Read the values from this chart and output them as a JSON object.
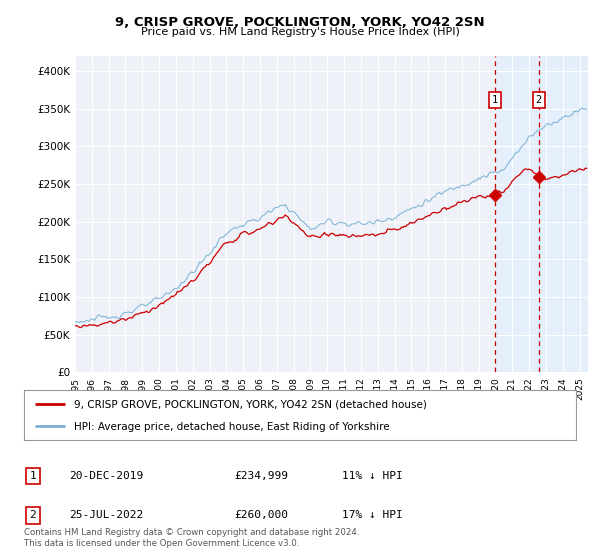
{
  "title": "9, CRISP GROVE, POCKLINGTON, YORK, YO42 2SN",
  "subtitle": "Price paid vs. HM Land Registry's House Price Index (HPI)",
  "ylim": [
    0,
    420000
  ],
  "yticks": [
    0,
    50000,
    100000,
    150000,
    200000,
    250000,
    300000,
    350000,
    400000
  ],
  "ytick_labels": [
    "£0",
    "£50K",
    "£100K",
    "£150K",
    "£200K",
    "£250K",
    "£300K",
    "£350K",
    "£400K"
  ],
  "bg_color": "#ffffff",
  "plot_bg_color": "#eef2f8",
  "grid_color": "#ffffff",
  "line_red_color": "#cc0000",
  "line_blue_color": "#7ab0d4",
  "transaction1_x": 2019.97,
  "transaction2_x": 2022.56,
  "transaction1_y": 234999,
  "transaction2_y": 260000,
  "legend_red": "9, CRISP GROVE, POCKLINGTON, YORK, YO42 2SN (detached house)",
  "legend_blue": "HPI: Average price, detached house, East Riding of Yorkshire",
  "table_row1": [
    "1",
    "20-DEC-2019",
    "£234,999",
    "11% ↓ HPI"
  ],
  "table_row2": [
    "2",
    "25-JUL-2022",
    "£260,000",
    "17% ↓ HPI"
  ],
  "footnote": "Contains HM Land Registry data © Crown copyright and database right 2024.\nThis data is licensed under the Open Government Licence v3.0.",
  "xlim_start": 1995.0,
  "xlim_end": 2025.5
}
